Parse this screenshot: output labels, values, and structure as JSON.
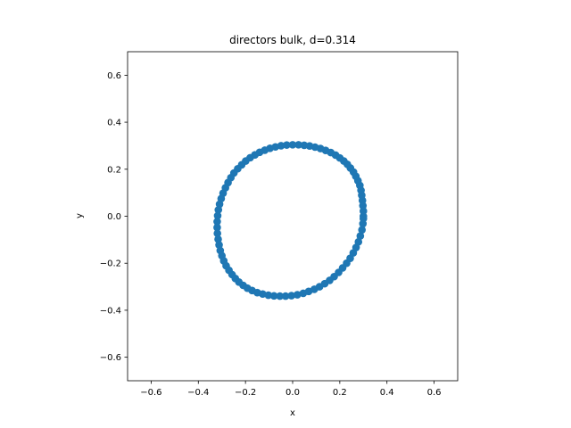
{
  "chart_data": {
    "type": "scatter",
    "title": "directors bulk, d=0.314",
    "xlabel": "x",
    "ylabel": "y",
    "xlim": [
      -0.7,
      0.7
    ],
    "ylim": [
      -0.7,
      0.7
    ],
    "xticks": [
      -0.6,
      -0.4,
      -0.2,
      0.0,
      0.2,
      0.4,
      0.6
    ],
    "yticks": [
      -0.6,
      -0.4,
      -0.2,
      0.0,
      0.2,
      0.4,
      0.6
    ],
    "xtick_labels": [
      "−0.6",
      "−0.4",
      "−0.2",
      "0.0",
      "0.2",
      "0.4",
      "0.6"
    ],
    "ytick_labels": [
      "−0.6",
      "−0.4",
      "−0.2",
      "0.0",
      "0.2",
      "0.4",
      "0.6"
    ],
    "grid": false,
    "series": [
      {
        "color": "#1f77b4",
        "x": [
          0.3,
          0.3,
          0.298,
          0.296,
          0.293,
          0.29,
          0.285,
          0.277,
          0.268,
          0.258,
          0.245,
          0.232,
          0.217,
          0.2,
          0.182,
          0.162,
          0.14,
          0.118,
          0.095,
          0.072,
          0.049,
          0.025,
          0.0,
          -0.025,
          -0.049,
          -0.073,
          -0.096,
          -0.118,
          -0.14,
          -0.16,
          -0.18,
          -0.199,
          -0.216,
          -0.233,
          -0.249,
          -0.262,
          -0.274,
          -0.285,
          -0.295,
          -0.303,
          -0.31,
          -0.315,
          -0.318,
          -0.32,
          -0.32,
          -0.319,
          -0.316,
          -0.312,
          -0.307,
          -0.3,
          -0.292,
          -0.282,
          -0.27,
          -0.257,
          -0.243,
          -0.228,
          -0.21,
          -0.192,
          -0.172,
          -0.15,
          -0.127,
          -0.103,
          -0.079,
          -0.054,
          -0.03,
          -0.005,
          0.02,
          0.045,
          0.068,
          0.092,
          0.114,
          0.136,
          0.157,
          0.176,
          0.195,
          0.212,
          0.229,
          0.244,
          0.257,
          0.269,
          0.279,
          0.287,
          0.294,
          0.298,
          0.3
        ],
        "y": [
          0.0,
          0.022,
          0.045,
          0.067,
          0.089,
          0.11,
          0.131,
          0.151,
          0.17,
          0.188,
          0.205,
          0.221,
          0.235,
          0.248,
          0.26,
          0.271,
          0.28,
          0.288,
          0.294,
          0.299,
          0.302,
          0.304,
          0.304,
          0.303,
          0.3,
          0.295,
          0.289,
          0.281,
          0.272,
          0.261,
          0.249,
          0.235,
          0.219,
          0.202,
          0.184,
          0.164,
          0.143,
          0.121,
          0.098,
          0.075,
          0.051,
          0.027,
          0.002,
          -0.023,
          -0.048,
          -0.073,
          -0.098,
          -0.122,
          -0.146,
          -0.168,
          -0.19,
          -0.211,
          -0.23,
          -0.248,
          -0.265,
          -0.28,
          -0.294,
          -0.306,
          -0.316,
          -0.325,
          -0.331,
          -0.336,
          -0.339,
          -0.34,
          -0.34,
          -0.338,
          -0.334,
          -0.328,
          -0.32,
          -0.311,
          -0.3,
          -0.287,
          -0.273,
          -0.257,
          -0.239,
          -0.22,
          -0.2,
          -0.179,
          -0.156,
          -0.133,
          -0.109,
          -0.084,
          -0.058,
          -0.032,
          -0.01
        ]
      }
    ]
  }
}
